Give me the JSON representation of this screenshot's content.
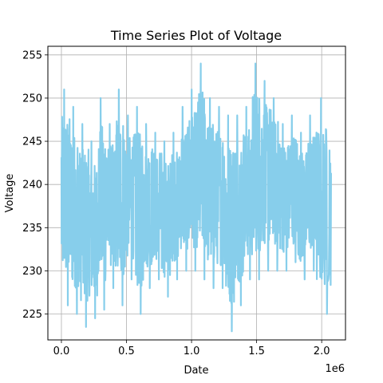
{
  "chart_data": {
    "type": "line",
    "title": "Time Series Plot of Voltage",
    "xlabel": "Date",
    "ylabel": "Voltage",
    "x_offset_label": "1e6",
    "x_tick_values": [
      0,
      500000,
      1000000,
      1500000,
      2000000
    ],
    "x_tick_labels": [
      "0.0",
      "0.5",
      "1.0",
      "1.5",
      "2.0"
    ],
    "y_tick_values": [
      225,
      230,
      235,
      240,
      245,
      250,
      255
    ],
    "y_tick_labels": [
      "225",
      "230",
      "235",
      "240",
      "245",
      "250",
      "255"
    ],
    "xlim": [
      -104000,
      2183000
    ],
    "ylim": [
      222,
      256
    ],
    "grid": true,
    "series": [
      {
        "color": "#87ceeb",
        "x_range": [
          0,
          2075000
        ],
        "segments": [
          {
            "x": [
              0,
              70000
            ],
            "min": 226,
            "max": 251
          },
          {
            "x": [
              70000,
              140000
            ],
            "min": 225,
            "max": 249
          },
          {
            "x": [
              140000,
              210000
            ],
            "min": 223.5,
            "max": 247
          },
          {
            "x": [
              210000,
              280000
            ],
            "min": 224.5,
            "max": 245
          },
          {
            "x": [
              280000,
              350000
            ],
            "min": 225.5,
            "max": 250
          },
          {
            "x": [
              350000,
              420000
            ],
            "min": 228,
            "max": 247
          },
          {
            "x": [
              420000,
              490000
            ],
            "min": 226,
            "max": 251
          },
          {
            "x": [
              490000,
              560000
            ],
            "min": 229,
            "max": 248
          },
          {
            "x": [
              560000,
              630000
            ],
            "min": 225,
            "max": 249
          },
          {
            "x": [
              630000,
              700000
            ],
            "min": 228,
            "max": 247
          },
          {
            "x": [
              700000,
              770000
            ],
            "min": 229,
            "max": 246
          },
          {
            "x": [
              770000,
              840000
            ],
            "min": 227,
            "max": 245
          },
          {
            "x": [
              840000,
              910000
            ],
            "min": 229,
            "max": 246
          },
          {
            "x": [
              910000,
              980000
            ],
            "min": 230,
            "max": 249
          },
          {
            "x": [
              980000,
              1050000
            ],
            "min": 230,
            "max": 251
          },
          {
            "x": [
              1050000,
              1120000
            ],
            "min": 229,
            "max": 254
          },
          {
            "x": [
              1120000,
              1190000
            ],
            "min": 228,
            "max": 250
          },
          {
            "x": [
              1190000,
              1260000
            ],
            "min": 228,
            "max": 249
          },
          {
            "x": [
              1260000,
              1330000
            ],
            "min": 223,
            "max": 248
          },
          {
            "x": [
              1330000,
              1400000
            ],
            "min": 226,
            "max": 248
          },
          {
            "x": [
              1400000,
              1470000
            ],
            "min": 229,
            "max": 249
          },
          {
            "x": [
              1470000,
              1540000
            ],
            "min": 229,
            "max": 254
          },
          {
            "x": [
              1540000,
              1610000
            ],
            "min": 230,
            "max": 252
          },
          {
            "x": [
              1610000,
              1680000
            ],
            "min": 230,
            "max": 250
          },
          {
            "x": [
              1680000,
              1750000
            ],
            "min": 230,
            "max": 247
          },
          {
            "x": [
              1750000,
              1820000
            ],
            "min": 231,
            "max": 248
          },
          {
            "x": [
              1820000,
              1890000
            ],
            "min": 229,
            "max": 246
          },
          {
            "x": [
              1890000,
              1960000
            ],
            "min": 230,
            "max": 248
          },
          {
            "x": [
              1960000,
              2075000
            ],
            "min": 225,
            "max": 250
          }
        ]
      }
    ]
  }
}
